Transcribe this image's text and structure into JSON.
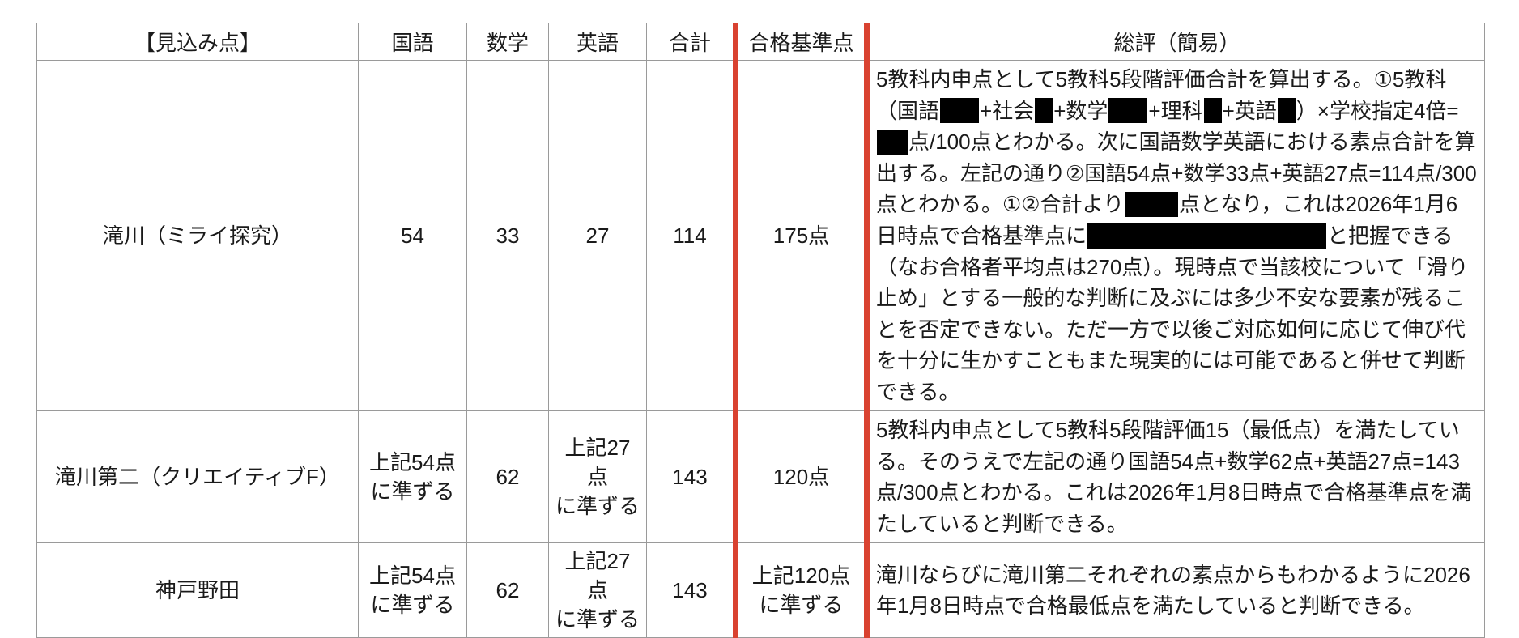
{
  "accent": {
    "bar_red": "#d94230",
    "grid_gray": "#9a9a9a",
    "redaction_black": "#000000"
  },
  "table": {
    "headers": {
      "school": "【見込み点】",
      "kokugo": "国語",
      "sugaku": "数学",
      "eigo": "英語",
      "goukei": "合計",
      "kijun": "合格基準点",
      "review": "総評（簡易）"
    },
    "rows": [
      {
        "school": "滝川（ミライ探究）",
        "kokugo": "54",
        "sugaku": "33",
        "eigo": "27",
        "goukei": "114",
        "kijun": "175点",
        "review_segments": [
          {
            "t": "5教科内申点として5教科5段階評価合計を算出する。①5教科（国語"
          },
          {
            "redact": 48
          },
          {
            "t": "+社会"
          },
          {
            "redact": 22
          },
          {
            "t": "+数学"
          },
          {
            "redact": 48
          },
          {
            "t": "+理科"
          },
          {
            "redact": 22
          },
          {
            "t": "+英語"
          },
          {
            "redact": 22
          },
          {
            "t": "）×学校指定4倍="
          },
          {
            "redact": 38
          },
          {
            "t": "点/100点とわかる。次に国語数学英語における素点合計を算出する。左記の通り②国語54点+数学33点+英語27点=114点/300点とわかる。①②合計より"
          },
          {
            "redact": 66
          },
          {
            "t": "点となり，これは2026年1月6日時点で合格基準点に"
          },
          {
            "redact": 295
          },
          {
            "t": "と把握できる（なお合格者平均点は270点）。現時点で当該校について「滑り止め」とする一般的な判断に及ぶには多少不安な要素が残ることを否定できない。ただ一方で以後ご対応如何に応じて伸び代を十分に生かすこともまた現実的には可能であると併せて判断できる。"
          }
        ]
      },
      {
        "school": "滝川第二（クリエイティブF）",
        "kokugo": "上記54点\nに準ずる",
        "sugaku": "62",
        "eigo": "上記27点\nに準ずる",
        "goukei": "143",
        "kijun": "120点",
        "review_segments": [
          {
            "t": "5教科内申点として5教科5段階評価15（最低点）を満たしている。そのうえで左記の通り国語54点+数学62点+英語27点=143点/300点とわかる。これは2026年1月8日時点で合格基準点を満たしていると判断できる。"
          }
        ]
      },
      {
        "school": "神戸野田",
        "kokugo": "上記54点\nに準ずる",
        "sugaku": "62",
        "eigo": "上記27点\nに準ずる",
        "goukei": "143",
        "kijun": "上記120点\nに準ずる",
        "review_segments": [
          {
            "t": "滝川ならびに滝川第二それぞれの素点からもわかるように2026年1月8日時点で合格最低点を満たしていると判断できる。"
          }
        ]
      }
    ]
  }
}
